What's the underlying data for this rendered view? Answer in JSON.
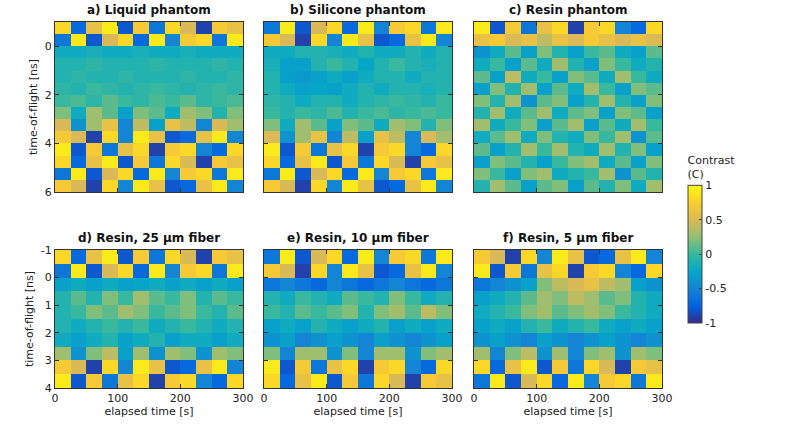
{
  "chart_data": [
    {
      "type": "heatmap",
      "title": "a) Liquid phantom",
      "ylabel": "time-of-flight [ns]",
      "tick_labels": "y",
      "x": [
        12.5,
        37.5,
        62.5,
        87.5,
        112.5,
        137.5,
        162.5,
        187.5,
        212.5,
        237.5,
        262.5,
        287.5
      ],
      "y": [
        -0.75,
        -0.25,
        0.25,
        0.75,
        1.25,
        1.75,
        2.25,
        2.75,
        3.25,
        3.75,
        4.25,
        4.75,
        5.25,
        5.75
      ],
      "xlim": [
        0,
        300
      ],
      "ylim": [
        6,
        -1
      ],
      "xticks": [
        0,
        100,
        200,
        300
      ],
      "yticks": [
        0,
        2,
        4,
        6
      ],
      "z": [
        [
          0.8,
          -0.7,
          0.6,
          0.9,
          -0.8,
          0.7,
          -0.6,
          0.8,
          0.5,
          -0.9,
          0.7,
          0.6
        ],
        [
          -0.6,
          0.9,
          -0.8,
          0.5,
          0.8,
          -0.7,
          0.9,
          -0.5,
          0.7,
          0.8,
          -0.6,
          0.9
        ],
        [
          -0.2,
          -0.2,
          -0.15,
          -0.2,
          -0.2,
          -0.15,
          -0.2,
          -0.2,
          -0.15,
          -0.2,
          -0.2,
          -0.2
        ],
        [
          -0.1,
          -0.1,
          -0.05,
          -0.1,
          -0.1,
          -0.1,
          -0.05,
          -0.1,
          -0.1,
          -0.1,
          -0.05,
          -0.1
        ],
        [
          -0.1,
          -0.05,
          -0.1,
          -0.1,
          -0.05,
          -0.1,
          -0.1,
          -0.1,
          -0.05,
          -0.1,
          -0.1,
          -0.05
        ],
        [
          -0.05,
          -0.1,
          0,
          -0.05,
          -0.1,
          -0.05,
          0,
          -0.05,
          -0.1,
          -0.05,
          0,
          -0.05
        ],
        [
          0,
          0.05,
          -0.05,
          0.1,
          0,
          -0.05,
          0.05,
          0,
          0.1,
          -0.05,
          0,
          0.05
        ],
        [
          0.2,
          -0.2,
          0.3,
          0.1,
          -0.3,
          0.2,
          0.1,
          -0.2,
          0.3,
          0.2,
          -0.1,
          0.2
        ],
        [
          0.5,
          -0.4,
          0.3,
          0.6,
          -0.5,
          0.4,
          -0.3,
          0.6,
          0.4,
          -0.5,
          0.5,
          0.3
        ],
        [
          0.7,
          0.5,
          -0.9,
          0.8,
          -0.5,
          0.9,
          0.6,
          -0.8,
          -0.7,
          0.6,
          0.9,
          -0.5
        ],
        [
          0.9,
          -0.8,
          0.7,
          -0.6,
          0.6,
          0.8,
          -0.9,
          0.7,
          0.8,
          -0.5,
          -0.7,
          0.8
        ],
        [
          0.8,
          -0.7,
          0.6,
          0.9,
          -0.8,
          0.7,
          -0.6,
          0.8,
          0.5,
          -0.9,
          0.7,
          0.6
        ],
        [
          -0.6,
          0.9,
          -0.8,
          0.5,
          0.8,
          -0.7,
          0.9,
          -0.5,
          0.7,
          0.8,
          -0.6,
          0.9
        ],
        [
          0.7,
          0.5,
          -0.9,
          0.8,
          -0.5,
          0.9,
          0.6,
          -0.8,
          -0.7,
          0.6,
          0.9,
          -0.5
        ]
      ]
    },
    {
      "type": "heatmap",
      "title": "b) Silicone phantom",
      "tick_labels": false,
      "x": [
        12.5,
        37.5,
        62.5,
        87.5,
        112.5,
        137.5,
        162.5,
        187.5,
        212.5,
        237.5,
        262.5,
        287.5
      ],
      "y": [
        -0.75,
        -0.25,
        0.25,
        0.75,
        1.25,
        1.75,
        2.25,
        2.75,
        3.25,
        3.75,
        4.25,
        4.75,
        5.25,
        5.75
      ],
      "xlim": [
        0,
        300
      ],
      "ylim": [
        6,
        -1
      ],
      "xticks": [
        0,
        100,
        200,
        300
      ],
      "yticks": [
        0,
        2,
        4,
        6
      ],
      "z": [
        [
          -0.6,
          0.9,
          -0.8,
          0.5,
          0.8,
          -0.7,
          0.9,
          -0.5,
          0.7,
          0.8,
          -0.6,
          0.9
        ],
        [
          0.7,
          0.5,
          -0.9,
          0.8,
          -0.5,
          0.9,
          0.6,
          -0.8,
          -0.7,
          0.6,
          0.9,
          -0.5
        ],
        [
          -0.2,
          -0.2,
          -0.1,
          -0.1,
          -0.15,
          -0.2,
          -0.1,
          -0.2,
          -0.2,
          -0.1,
          -0.2,
          -0.1
        ],
        [
          -0.15,
          -0.3,
          -0.3,
          -0.1,
          0,
          -0.1,
          -0.25,
          -0.1,
          0,
          -0.1,
          -0.15,
          -0.1
        ],
        [
          -0.1,
          -0.3,
          -0.35,
          -0.3,
          -0.2,
          -0.3,
          -0.2,
          -0.1,
          -0.1,
          -0.2,
          -0.1,
          -0.1
        ],
        [
          -0.1,
          -0.2,
          -0.3,
          -0.25,
          -0.3,
          -0.2,
          -0.1,
          -0.2,
          -0.1,
          -0.1,
          -0.15,
          -0.1
        ],
        [
          -0.05,
          -0.1,
          -0.2,
          -0.1,
          -0.1,
          -0.2,
          -0.1,
          -0.05,
          0,
          -0.05,
          -0.1,
          0
        ],
        [
          0,
          -0.1,
          0,
          -0.05,
          0.05,
          -0.1,
          0,
          0.05,
          -0.05,
          0,
          0.05,
          0
        ],
        [
          0.2,
          -0.2,
          0.3,
          0.1,
          -0.3,
          0.2,
          0.1,
          -0.2,
          0.3,
          0.2,
          -0.1,
          0.2
        ],
        [
          0.5,
          -0.4,
          0.3,
          0.6,
          -0.5,
          0.4,
          -0.3,
          0.6,
          0.4,
          -0.5,
          0.5,
          0.3
        ],
        [
          0.9,
          -0.8,
          0.7,
          -0.6,
          0.6,
          0.8,
          -0.9,
          0.7,
          0.8,
          -0.5,
          -0.7,
          0.8
        ],
        [
          0.8,
          -0.7,
          0.6,
          0.9,
          -0.8,
          0.7,
          -0.6,
          0.8,
          0.5,
          -0.9,
          0.7,
          0.6
        ],
        [
          -0.6,
          0.9,
          -0.8,
          0.5,
          0.8,
          -0.7,
          0.9,
          -0.5,
          0.7,
          0.8,
          -0.6,
          0.9
        ],
        [
          0.7,
          0.5,
          -0.9,
          0.8,
          -0.5,
          0.9,
          0.6,
          -0.8,
          -0.7,
          0.6,
          0.9,
          -0.5
        ]
      ]
    },
    {
      "type": "heatmap",
      "title": "c) Resin phantom",
      "tick_labels": false,
      "x": [
        12.5,
        37.5,
        62.5,
        87.5,
        112.5,
        137.5,
        162.5,
        187.5,
        212.5,
        237.5,
        262.5,
        287.5
      ],
      "y": [
        -0.75,
        -0.25,
        0.25,
        0.75,
        1.25,
        1.75,
        2.25,
        2.75,
        3.25,
        3.75,
        4.25,
        4.75,
        5.25,
        5.75
      ],
      "xlim": [
        0,
        300
      ],
      "ylim": [
        6,
        -1
      ],
      "xticks": [
        0,
        100,
        200,
        300
      ],
      "yticks": [
        0,
        2,
        4,
        6
      ],
      "colorbar": {
        "title": "Contrast (C)",
        "range": [
          -1,
          1
        ],
        "ticks": [
          -1,
          -0.5,
          0,
          0.5,
          1
        ]
      },
      "z": [
        [
          0.9,
          -0.8,
          0.7,
          -0.6,
          0.6,
          0.8,
          -0.9,
          0.7,
          0.8,
          -0.5,
          -0.7,
          0.8
        ],
        [
          0.6,
          0.7,
          0.5,
          0.6,
          0.4,
          0.6,
          0.5,
          0.7,
          0.6,
          0.5,
          0.6,
          0.5
        ],
        [
          -0.4,
          -0.2,
          0.1,
          -0.3,
          0.2,
          -0.1,
          -0.3,
          0.0,
          0.1,
          -0.2,
          -0.3,
          0.1
        ],
        [
          -0.2,
          0.0,
          -0.3,
          0.1,
          -0.2,
          0.3,
          -0.1,
          -0.3,
          0.2,
          0.0,
          -0.2,
          -0.1
        ],
        [
          0.1,
          -0.3,
          0.4,
          -0.2,
          0.0,
          -0.3,
          0.2,
          0.1,
          -0.2,
          0.3,
          0.0,
          -0.2
        ],
        [
          -0.3,
          0.2,
          -0.1,
          0.3,
          -0.3,
          0.1,
          -0.2,
          0.3,
          0.0,
          -0.3,
          0.2,
          0.1
        ],
        [
          0.2,
          -0.1,
          0.3,
          -0.4,
          0.1,
          0.2,
          -0.3,
          -0.1,
          0.3,
          -0.1,
          -0.3,
          0.2
        ],
        [
          -0.1,
          0.3,
          -0.2,
          0.1,
          0.3,
          -0.2,
          0.1,
          0.2,
          -0.3,
          0.2,
          0.1,
          -0.3
        ],
        [
          0.3,
          -0.2,
          0.0,
          0.2,
          -0.3,
          0.1,
          0.3,
          -0.3,
          0.1,
          -0.2,
          0.3,
          0.0
        ],
        [
          -0.2,
          0.1,
          0.3,
          -0.2,
          0.2,
          -0.1,
          -0.2,
          0.2,
          0.0,
          0.3,
          -0.4,
          0.1
        ],
        [
          0.1,
          -0.3,
          -0.1,
          0.3,
          0.0,
          0.3,
          -0.1,
          -0.2,
          0.3,
          -0.1,
          0.2,
          -0.3
        ],
        [
          -0.3,
          0.2,
          0.1,
          -0.1,
          -0.3,
          0.0,
          0.2,
          0.3,
          -0.2,
          0.1,
          -0.3,
          0.2
        ],
        [
          0.2,
          0.0,
          -0.3,
          0.2,
          0.3,
          -0.2,
          -0.1,
          0.0,
          0.3,
          -0.4,
          0.1,
          -0.1
        ],
        [
          -0.1,
          0.3,
          0.1,
          -0.3,
          0.1,
          0.2,
          -0.3,
          0.1,
          -0.1,
          0.2,
          -0.2,
          0.3
        ]
      ]
    },
    {
      "type": "heatmap",
      "title": "d) Resin, 25 μm fiber",
      "xlabel": "elapsed time [s]",
      "ylabel": "time-of-flight [ns]",
      "tick_labels": true,
      "x": [
        12.5,
        37.5,
        62.5,
        87.5,
        112.5,
        137.5,
        162.5,
        187.5,
        212.5,
        237.5,
        262.5,
        287.5
      ],
      "y": [
        -0.75,
        -0.25,
        0.25,
        0.75,
        1.25,
        1.75,
        2.25,
        2.75,
        3.25,
        3.75
      ],
      "xlim": [
        0,
        300
      ],
      "ylim": [
        4,
        -1
      ],
      "xticks": [
        0,
        100,
        200,
        300
      ],
      "yticks": [
        -1,
        0,
        1,
        2,
        3,
        4
      ],
      "z": [
        [
          0.8,
          -0.7,
          0.6,
          0.9,
          -0.8,
          0.7,
          -0.6,
          0.8,
          0.5,
          -0.9,
          0.7,
          0.6
        ],
        [
          -0.6,
          0.9,
          -0.8,
          0.5,
          0.8,
          -0.7,
          0.9,
          -0.5,
          0.7,
          0.8,
          -0.6,
          0.9
        ],
        [
          -0.3,
          -0.2,
          -0.3,
          -0.2,
          -0.3,
          -0.25,
          -0.2,
          -0.3,
          -0.2,
          -0.3,
          -0.2,
          -0.3
        ],
        [
          -0.1,
          0.1,
          -0.1,
          0.2,
          0.0,
          0.3,
          0.1,
          0.0,
          0.2,
          -0.1,
          0.1,
          0.0
        ],
        [
          -0.1,
          0.0,
          0.2,
          0.1,
          0.3,
          0.2,
          0.0,
          0.1,
          0.2,
          0.0,
          -0.1,
          0.1
        ],
        [
          -0.1,
          -0.2,
          -0.1,
          0.0,
          -0.1,
          0.0,
          -0.2,
          -0.1,
          0.0,
          -0.1,
          -0.2,
          -0.1
        ],
        [
          -0.2,
          -0.3,
          -0.2,
          -0.1,
          -0.3,
          -0.2,
          -0.1,
          -0.3,
          -0.2,
          -0.2,
          -0.3,
          -0.2
        ],
        [
          0.3,
          -0.4,
          0.2,
          0.4,
          -0.3,
          0.3,
          -0.4,
          0.3,
          0.2,
          -0.4,
          0.3,
          0.2
        ],
        [
          0.7,
          0.5,
          -0.9,
          0.8,
          -0.5,
          0.9,
          0.6,
          -0.8,
          -0.7,
          0.6,
          0.9,
          -0.5
        ],
        [
          0.9,
          -0.8,
          0.7,
          -0.6,
          0.6,
          0.8,
          -0.9,
          0.7,
          0.8,
          -0.5,
          -0.7,
          0.8
        ]
      ]
    },
    {
      "type": "heatmap",
      "title": "e) Resin, 10 μm fiber",
      "xlabel": "elapsed time [s]",
      "tick_labels": "x",
      "x": [
        12.5,
        37.5,
        62.5,
        87.5,
        112.5,
        137.5,
        162.5,
        187.5,
        212.5,
        237.5,
        262.5,
        287.5
      ],
      "y": [
        -0.75,
        -0.25,
        0.25,
        0.75,
        1.25,
        1.75,
        2.25,
        2.75,
        3.25,
        3.75
      ],
      "xlim": [
        0,
        300
      ],
      "ylim": [
        4,
        -1
      ],
      "xticks": [
        0,
        100,
        200,
        300
      ],
      "yticks": [
        -1,
        0,
        1,
        2,
        3,
        4
      ],
      "z": [
        [
          -0.6,
          0.9,
          -0.8,
          0.5,
          0.8,
          -0.7,
          0.9,
          -0.5,
          0.7,
          0.8,
          -0.6,
          0.9
        ],
        [
          0.7,
          0.5,
          -0.9,
          0.8,
          -0.5,
          0.9,
          0.6,
          -0.8,
          -0.7,
          0.6,
          0.9,
          -0.5
        ],
        [
          -0.6,
          -0.5,
          -0.6,
          -0.7,
          -0.5,
          -0.6,
          -0.7,
          -0.6,
          -0.5,
          -0.6,
          -0.7,
          -0.6
        ],
        [
          -0.1,
          -0.2,
          0.0,
          -0.1,
          -0.2,
          0.1,
          0.0,
          -0.1,
          0.2,
          0.0,
          -0.2,
          -0.1
        ],
        [
          0.0,
          -0.1,
          0.1,
          0.0,
          0.1,
          0.2,
          -0.1,
          0.2,
          0.3,
          0.1,
          0.4,
          0.2
        ],
        [
          -0.3,
          -0.2,
          -0.3,
          -0.1,
          -0.2,
          -0.3,
          -0.2,
          -0.1,
          -0.3,
          -0.2,
          -0.3,
          -0.2
        ],
        [
          -0.4,
          -0.3,
          -0.5,
          -0.4,
          -0.3,
          -0.4,
          -0.5,
          -0.3,
          -0.4,
          -0.5,
          -0.4,
          -0.3
        ],
        [
          0.2,
          -0.5,
          0.3,
          0.3,
          -0.4,
          0.2,
          -0.5,
          0.3,
          0.3,
          -0.4,
          0.2,
          0.3
        ],
        [
          0.9,
          -0.8,
          0.7,
          -0.6,
          0.6,
          0.8,
          -0.9,
          0.7,
          0.8,
          -0.5,
          -0.7,
          0.8
        ],
        [
          0.8,
          -0.7,
          0.6,
          0.9,
          -0.8,
          0.7,
          -0.6,
          0.8,
          0.5,
          -0.9,
          0.7,
          0.6
        ]
      ]
    },
    {
      "type": "heatmap",
      "title": "f) Resin, 5 μm fiber",
      "xlabel": "elapsed time [s]",
      "tick_labels": "x",
      "x": [
        12.5,
        37.5,
        62.5,
        87.5,
        112.5,
        137.5,
        162.5,
        187.5,
        212.5,
        237.5,
        262.5,
        287.5
      ],
      "y": [
        -0.75,
        -0.25,
        0.25,
        0.75,
        1.25,
        1.75,
        2.25,
        2.75,
        3.25,
        3.75
      ],
      "xlim": [
        0,
        300
      ],
      "ylim": [
        4,
        -1
      ],
      "xticks": [
        0,
        100,
        200,
        300
      ],
      "yticks": [
        -1,
        0,
        1,
        2,
        3,
        4
      ],
      "z": [
        [
          0.7,
          0.5,
          -0.9,
          0.8,
          -0.5,
          0.9,
          0.6,
          -0.8,
          -0.7,
          0.6,
          0.9,
          -0.5
        ],
        [
          0.9,
          -0.8,
          0.7,
          -0.6,
          0.6,
          0.8,
          -0.9,
          0.7,
          0.8,
          -0.5,
          -0.7,
          0.8
        ],
        [
          -0.6,
          -0.5,
          -0.4,
          -0.3,
          0.2,
          0.4,
          0.5,
          0.6,
          0.4,
          0.3,
          -0.3,
          -0.4
        ],
        [
          -0.3,
          -0.2,
          -0.1,
          0.1,
          0.3,
          0.2,
          0.4,
          0.3,
          0.1,
          0.2,
          -0.1,
          -0.2
        ],
        [
          -0.2,
          -0.1,
          0.0,
          0.2,
          0.3,
          0.1,
          0.2,
          0.3,
          0.2,
          0.0,
          -0.1,
          -0.2
        ],
        [
          -0.3,
          -0.2,
          -0.3,
          -0.1,
          0.0,
          -0.2,
          -0.1,
          0.0,
          -0.2,
          -0.3,
          -0.2,
          -0.3
        ],
        [
          -0.4,
          -0.3,
          -0.4,
          -0.5,
          -0.3,
          -0.4,
          -0.5,
          -0.4,
          -0.3,
          -0.4,
          -0.5,
          -0.4
        ],
        [
          0.3,
          -0.5,
          0.2,
          0.4,
          -0.4,
          0.3,
          -0.5,
          0.2,
          0.3,
          -0.4,
          0.3,
          0.2
        ],
        [
          0.8,
          -0.7,
          0.6,
          0.9,
          -0.8,
          0.7,
          -0.6,
          0.8,
          0.5,
          -0.9,
          0.7,
          0.6
        ],
        [
          -0.6,
          0.9,
          -0.8,
          0.5,
          0.8,
          -0.7,
          0.9,
          -0.5,
          0.7,
          0.8,
          -0.6,
          0.9
        ]
      ]
    }
  ]
}
